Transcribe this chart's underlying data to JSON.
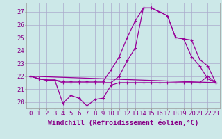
{
  "background_color": "#cce8e8",
  "grid_color": "#aaaacc",
  "line_color": "#990099",
  "xlabel": "Windchill (Refroidissement éolien,°C)",
  "ylabel_ticks": [
    20,
    21,
    22,
    23,
    24,
    25,
    26,
    27
  ],
  "xlim": [
    -0.5,
    23.5
  ],
  "ylim": [
    19.5,
    27.7
  ],
  "xticks": [
    0,
    1,
    2,
    3,
    4,
    5,
    6,
    7,
    8,
    9,
    10,
    11,
    12,
    13,
    14,
    15,
    16,
    17,
    18,
    19,
    20,
    21,
    22,
    23
  ],
  "tick_fontsize": 6.5,
  "xlabel_fontsize": 7.0,
  "line1_x": [
    0,
    1,
    2,
    3,
    4,
    5,
    6,
    7,
    8,
    9,
    10,
    11,
    12,
    13,
    14,
    15,
    16,
    17,
    18,
    19,
    20,
    21,
    22,
    23
  ],
  "line1_y": [
    22.0,
    21.8,
    21.7,
    21.7,
    19.9,
    20.5,
    20.3,
    19.7,
    20.2,
    20.3,
    21.3,
    21.5,
    21.5,
    21.5,
    21.5,
    21.5,
    21.5,
    21.5,
    21.5,
    21.5,
    21.5,
    21.5,
    22.0,
    21.5
  ],
  "line2_x": [
    0,
    1,
    2,
    3,
    4,
    5,
    6,
    7,
    8,
    9,
    10,
    11,
    12,
    13,
    14,
    15,
    16,
    17,
    18,
    19,
    20,
    21,
    22,
    23
  ],
  "line2_y": [
    22.0,
    21.8,
    21.7,
    21.7,
    21.6,
    21.6,
    21.6,
    21.6,
    21.6,
    21.6,
    22.5,
    23.5,
    25.0,
    26.3,
    27.3,
    27.3,
    27.0,
    26.7,
    25.0,
    24.9,
    24.8,
    23.3,
    22.8,
    21.5
  ],
  "line3_x": [
    0,
    1,
    2,
    3,
    4,
    5,
    6,
    7,
    8,
    9,
    10,
    11,
    12,
    13,
    14,
    15,
    16,
    17,
    18,
    19,
    20,
    21,
    22,
    23
  ],
  "line3_y": [
    22.0,
    21.8,
    21.7,
    21.7,
    21.5,
    21.5,
    21.5,
    21.5,
    21.5,
    21.5,
    21.5,
    22.0,
    23.2,
    24.2,
    27.3,
    27.3,
    27.0,
    26.7,
    25.0,
    24.9,
    23.5,
    22.8,
    21.8,
    21.5
  ],
  "line4_x": [
    0,
    23
  ],
  "line4_y": [
    22.0,
    21.5
  ]
}
